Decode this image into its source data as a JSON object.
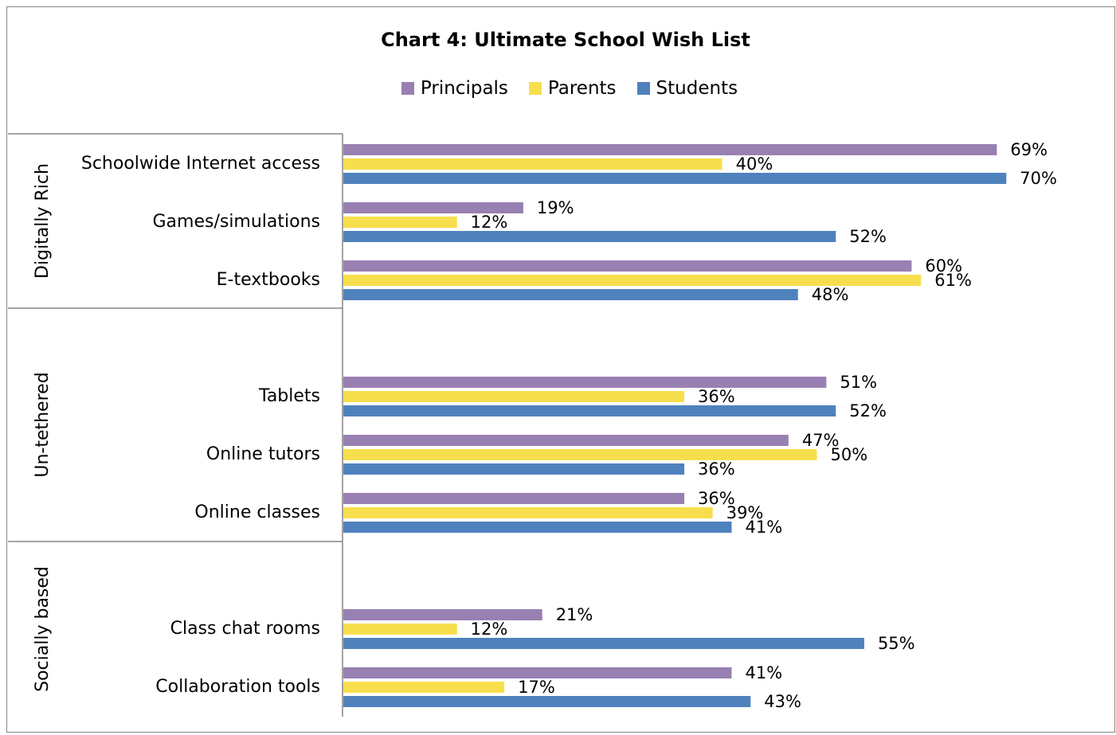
{
  "chart_data": {
    "type": "bar",
    "orientation": "horizontal",
    "title": "Chart 4: Ultimate School Wish List",
    "groups": [
      {
        "label": "Digitally Rich",
        "categories": [
          "Schoolwide Internet access",
          "Games/simulations",
          "E-textbooks"
        ]
      },
      {
        "label": "Un-tethered",
        "categories": [
          "Tablets",
          "Online tutors",
          "Online classes"
        ]
      },
      {
        "label": "Socially based",
        "categories": [
          "Class chat rooms",
          "Collaboration tools"
        ]
      }
    ],
    "categories": [
      "Schoolwide Internet access",
      "Games/simulations",
      "E-textbooks",
      "Tablets",
      "Online tutors",
      "Online classes",
      "Class chat rooms",
      "Collaboration tools"
    ],
    "series": [
      {
        "name": "Principals",
        "color": "#9880b2",
        "values": [
          69,
          19,
          60,
          51,
          47,
          36,
          21,
          41
        ]
      },
      {
        "name": "Parents",
        "color": "#f7de4d",
        "values": [
          40,
          12,
          61,
          36,
          50,
          39,
          12,
          17
        ]
      },
      {
        "name": "Students",
        "color": "#4f81bd",
        "values": [
          70,
          52,
          48,
          52,
          36,
          41,
          55,
          43
        ]
      }
    ],
    "value_suffix": "%",
    "xlim": [
      0,
      70
    ],
    "legend_position": "top",
    "grid": false
  }
}
